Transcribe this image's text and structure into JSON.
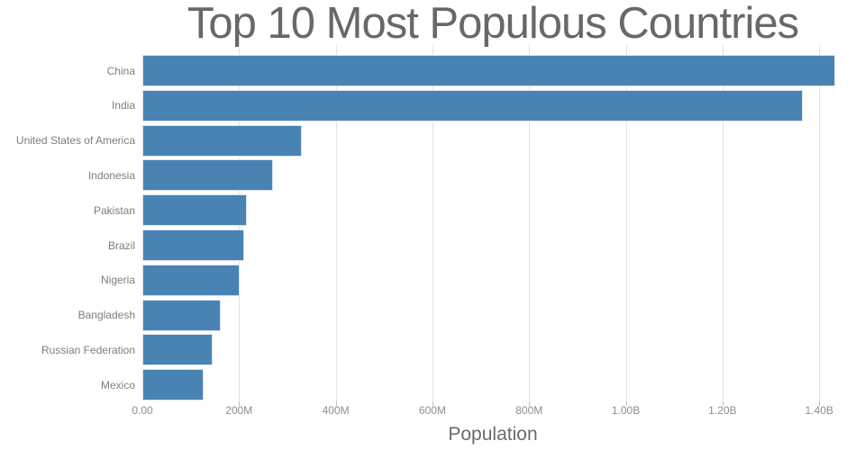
{
  "chart_data": {
    "type": "bar",
    "orientation": "horizontal",
    "title": "Top 10 Most Populous Countries",
    "xlabel": "Population",
    "categories": [
      "China",
      "India",
      "United States of America",
      "Indonesia",
      "Pakistan",
      "Brazil",
      "Nigeria",
      "Bangladesh",
      "Russian Federation",
      "Mexico"
    ],
    "values": [
      1433783686,
      1366417754,
      329064917,
      270625568,
      216565318,
      211049527,
      200963599,
      163046161,
      145872256,
      127575529
    ],
    "xlim": [
      0,
      1450000000
    ],
    "xticks": [
      {
        "value": 0,
        "label": "0.00"
      },
      {
        "value": 200000000,
        "label": "200M"
      },
      {
        "value": 400000000,
        "label": "400M"
      },
      {
        "value": 600000000,
        "label": "600M"
      },
      {
        "value": 800000000,
        "label": "800M"
      },
      {
        "value": 1000000000,
        "label": "1.00B"
      },
      {
        "value": 1200000000,
        "label": "1.20B"
      },
      {
        "value": 1400000000,
        "label": "1.40B"
      }
    ],
    "grid": "vertical-only",
    "legend": "none",
    "colors": {
      "bar": "#4883b4",
      "bar_edge": "#d9e4ef",
      "gridline": "#e2e2e2",
      "tick": "#c0c0c0",
      "title_text": "#6a6765",
      "axis_title_text": "#6e6b68",
      "tick_label_text": "#8e8e8e",
      "category_text": "#7d7d7d"
    }
  }
}
